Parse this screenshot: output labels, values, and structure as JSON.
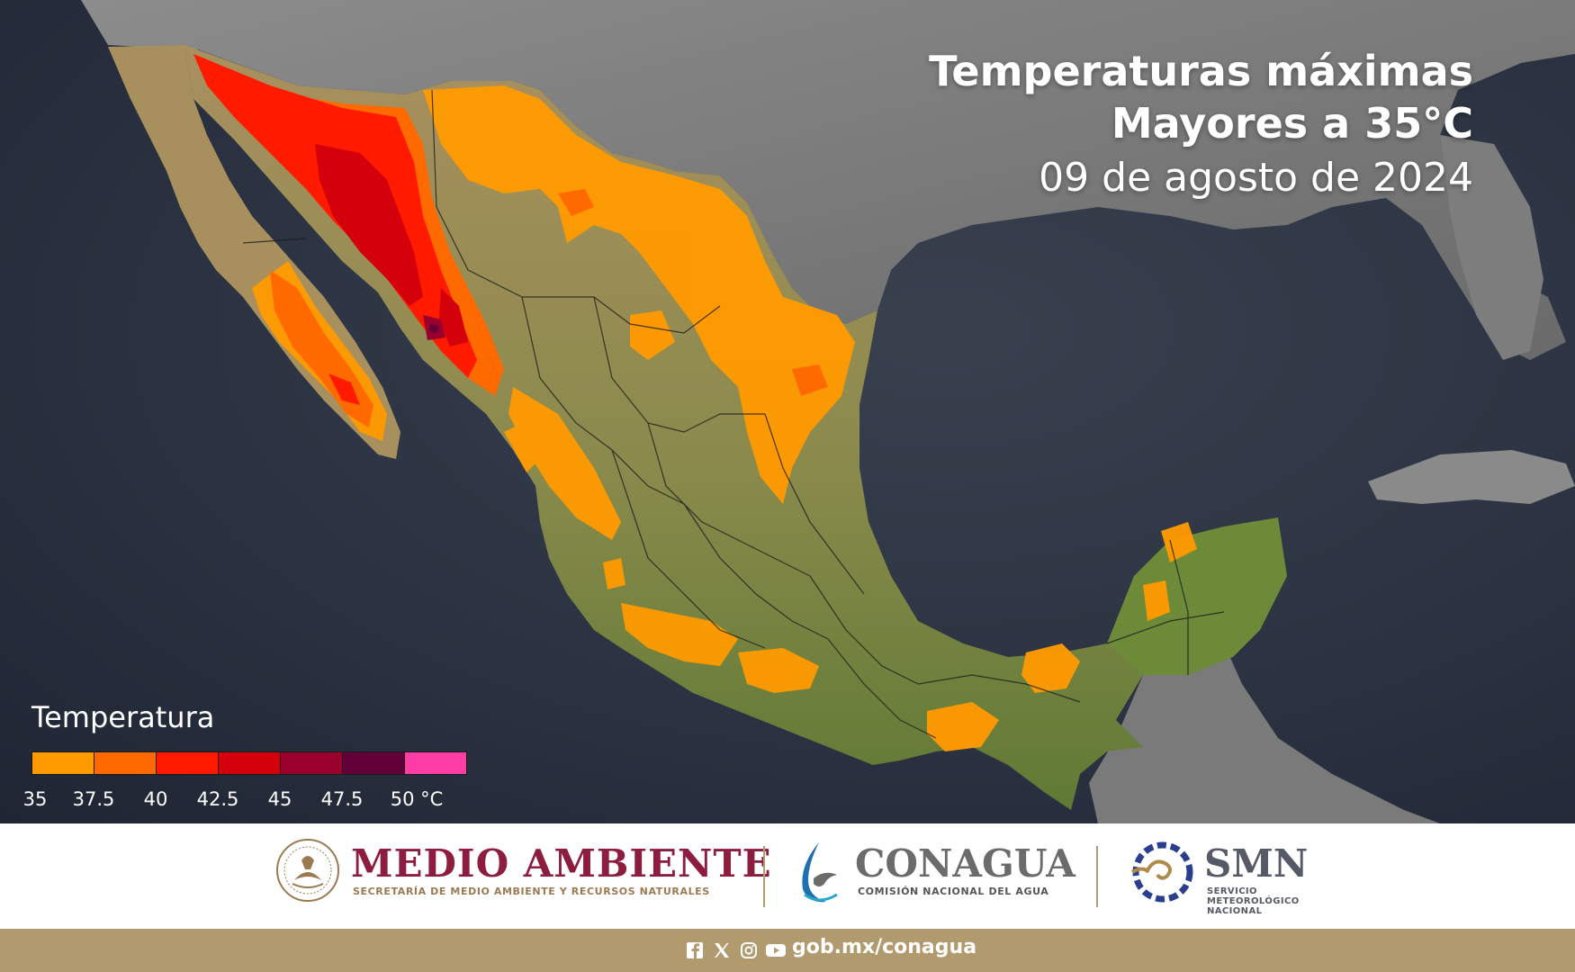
{
  "title": {
    "line1": "Temperaturas máximas",
    "line2": "Mayores a 35°C",
    "date": "09 de agosto de 2024"
  },
  "legend": {
    "title": "Temperatura",
    "bins": [
      {
        "from": 35,
        "to": 37.5,
        "color": "#ff9a00"
      },
      {
        "from": 37.5,
        "to": 40,
        "color": "#ff6a00"
      },
      {
        "from": 40,
        "to": 42.5,
        "color": "#ff1a00"
      },
      {
        "from": 42.5,
        "to": 45,
        "color": "#d4000c"
      },
      {
        "from": 45,
        "to": 47.5,
        "color": "#99002e"
      },
      {
        "from": 47.5,
        "to": 50,
        "color": "#63003a"
      },
      {
        "from": 50,
        "to": null,
        "color": "#ff3ea5"
      }
    ],
    "ticks": [
      "35",
      "37.5",
      "40",
      "42.5",
      "45",
      "47.5",
      "50 °C"
    ]
  },
  "logos": {
    "medio_ambiente": {
      "name": "MEDIO AMBIENTE",
      "subtitle": "SECRETARÍA DE MEDIO AMBIENTE Y RECURSOS NATURALES",
      "color": "#8d1d3e"
    },
    "conagua": {
      "name": "CONAGUA",
      "subtitle": "COMISIÓN NACIONAL DEL AGUA"
    },
    "smn": {
      "name": "SMN",
      "subtitle": "SERVICIO METEOROLÓGICO NACIONAL"
    }
  },
  "footer": {
    "social_icons": [
      "facebook-icon",
      "x-icon",
      "instagram-icon",
      "youtube-icon"
    ],
    "url": "gob.mx/conagua",
    "color": "#b19a6e"
  }
}
